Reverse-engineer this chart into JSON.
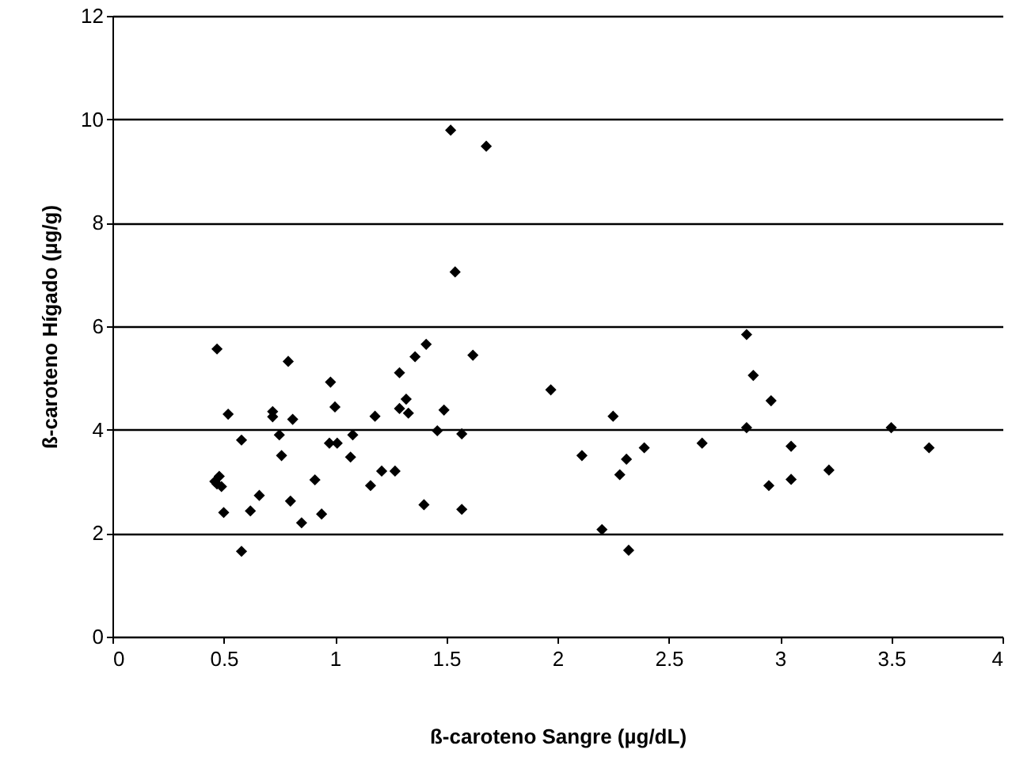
{
  "chart_data": {
    "type": "scatter",
    "xlabel": "ß-caroteno Sangre (µg/dL)",
    "ylabel": "ß-caroteno Hígado (µg/g)",
    "x": [
      0.47,
      0.46,
      0.48,
      0.49,
      0.47,
      0.52,
      0.58,
      0.5,
      0.58,
      0.62,
      0.66,
      0.72,
      0.72,
      0.75,
      0.81,
      0.79,
      0.76,
      0.8,
      0.85,
      0.91,
      0.94,
      0.98,
      1.0,
      0.975,
      1.01,
      1.08,
      1.07,
      1.16,
      1.18,
      1.21,
      1.27,
      1.29,
      1.36,
      1.41,
      1.29,
      1.32,
      1.33,
      1.4,
      1.46,
      1.49,
      1.57,
      1.57,
      1.62,
      1.97,
      2.11,
      2.2,
      2.25,
      2.28,
      2.31,
      2.32,
      2.39,
      2.65,
      2.85,
      2.88,
      2.96,
      2.85,
      3.05,
      2.95,
      3.05,
      3.22,
      3.5,
      3.67,
      1.52,
      1.68,
      1.54
    ],
    "series": [
      {
        "color": "#000000",
        "values": [
          5.56,
          3.0,
          3.1,
          2.9,
          2.95,
          4.3,
          3.8,
          2.4,
          1.65,
          2.43,
          2.73,
          4.35,
          4.25,
          3.9,
          4.2,
          5.32,
          3.5,
          2.62,
          2.2,
          3.03,
          2.37,
          4.92,
          4.44,
          3.74,
          3.74,
          3.9,
          3.47,
          2.92,
          4.26,
          3.2,
          3.2,
          5.1,
          5.41,
          5.65,
          4.41,
          4.59,
          4.32,
          2.55,
          3.98,
          4.38,
          3.92,
          2.46,
          5.44,
          4.77,
          3.5,
          2.07,
          4.26,
          3.13,
          3.43,
          1.67,
          3.65,
          3.74,
          5.84,
          5.05,
          4.56,
          4.04,
          3.68,
          2.92,
          3.04,
          3.22,
          4.04,
          3.65,
          9.79,
          9.48,
          7.05
        ]
      }
    ],
    "xlim": [
      0,
      4
    ],
    "xticks": [
      0,
      0.5,
      1,
      1.5,
      2,
      2.5,
      3,
      3.5,
      4
    ],
    "ylim": [
      0,
      12
    ],
    "yticks": [
      0,
      2,
      4,
      6,
      8,
      10,
      12
    ],
    "grid": "y",
    "marker": "diamond"
  }
}
